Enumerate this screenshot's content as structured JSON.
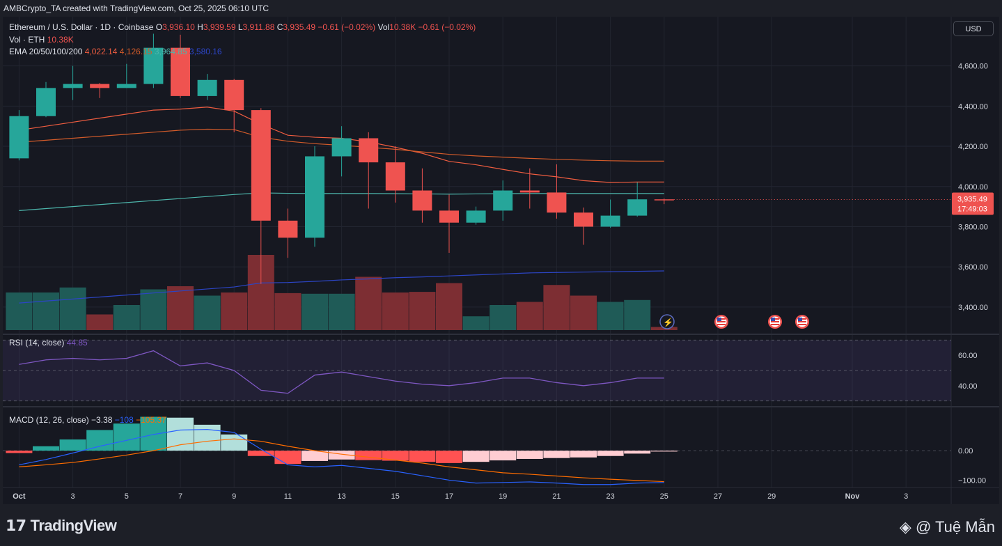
{
  "header": {
    "credit": "AMBCrypto_TA created with TradingView.com, Oct 25, 2025 06:10 UTC"
  },
  "legend": {
    "symbol": "Ethereum / U.S. Dollar · 1D · Coinbase",
    "o_label": "O",
    "o_value": "3,936.10",
    "h_label": "H",
    "h_value": "3,939.59",
    "l_label": "L",
    "l_value": "3,911.88",
    "c_label": "C",
    "c_value": "3,935.49",
    "change": "−0.61 (−0.02%)",
    "vol_label": "Vol",
    "vol_value": "10.38K",
    "vol_change": "−0.61 (−0.02%)",
    "vol_eth_label": "Vol · ETH",
    "vol_eth_value": "10.38K",
    "ema_label": "EMA 20/50/100/200",
    "ema_values": [
      "4,022.14",
      "4,126.15",
      "3,964.85",
      "3,580.16"
    ]
  },
  "currency_button": "USD",
  "price_tag": {
    "price": "3,935.49",
    "countdown": "17:49:03"
  },
  "rsi": {
    "label": "RSI (14, close)",
    "value": "44.85"
  },
  "macd": {
    "label": "MACD (12, 26, close)",
    "hist": "−3.38",
    "macd": "−108",
    "signal": "−105.37"
  },
  "footer": {
    "brand": "TradingView",
    "watermark": "@ Tuệ Mẫn"
  },
  "colors": {
    "up": "#26a69a",
    "down": "#ef5350",
    "bg": "#161821",
    "ema20": "#f05d40",
    "ema50": "#d25b2a",
    "ema100": "#4db6ac",
    "ema200": "#2c45c5",
    "rsi": "#7e57c2",
    "macd_line": "#2962ff",
    "signal_line": "#ff6d00"
  },
  "chart_data": {
    "type": "candlestick",
    "x": [
      "Oct 1",
      "Oct 2",
      "Oct 3",
      "Oct 4",
      "Oct 5",
      "Oct 6",
      "Oct 7",
      "Oct 8",
      "Oct 9",
      "Oct 10",
      "Oct 11",
      "Oct 12",
      "Oct 13",
      "Oct 14",
      "Oct 15",
      "Oct 16",
      "Oct 17",
      "Oct 18",
      "Oct 19",
      "Oct 20",
      "Oct 21",
      "Oct 22",
      "Oct 23",
      "Oct 24",
      "Oct 25"
    ],
    "ohlc": [
      [
        4140,
        4380,
        4130,
        4350
      ],
      [
        4350,
        4520,
        4345,
        4490
      ],
      [
        4490,
        4600,
        4430,
        4510
      ],
      [
        4510,
        4515,
        4440,
        4490
      ],
      [
        4490,
        4610,
        4490,
        4510
      ],
      [
        4510,
        4760,
        4490,
        4690
      ],
      [
        4690,
        4755,
        4440,
        4450
      ],
      [
        4450,
        4560,
        4430,
        4530
      ],
      [
        4530,
        4535,
        4270,
        4380
      ],
      [
        4380,
        4390,
        3515,
        3830
      ],
      [
        3830,
        3890,
        3645,
        3745
      ],
      [
        3745,
        4200,
        3700,
        4150
      ],
      [
        4150,
        4300,
        4050,
        4240
      ],
      [
        4240,
        4270,
        3890,
        4120
      ],
      [
        4120,
        4200,
        3920,
        3980
      ],
      [
        3980,
        4090,
        3820,
        3880
      ],
      [
        3880,
        3960,
        3670,
        3820
      ],
      [
        3820,
        3900,
        3810,
        3880
      ],
      [
        3880,
        4030,
        3830,
        3980
      ],
      [
        3980,
        4090,
        3890,
        3970
      ],
      [
        3970,
        4110,
        3840,
        3870
      ],
      [
        3870,
        3895,
        3710,
        3800
      ],
      [
        3800,
        3935,
        3795,
        3855
      ],
      [
        3855,
        4020,
        3850,
        3936
      ],
      [
        3936,
        3940,
        3912,
        3935
      ]
    ],
    "volume": [
      60,
      60,
      68,
      25,
      40,
      65,
      70,
      55,
      60,
      120,
      59,
      58,
      58,
      85,
      60,
      61,
      75,
      22,
      40,
      45,
      72,
      55,
      45,
      48,
      5
    ],
    "ema20": [
      4280,
      4300,
      4320,
      4340,
      4360,
      4380,
      4385,
      4395,
      4375,
      4310,
      4255,
      4245,
      4240,
      4222,
      4195,
      4165,
      4125,
      4108,
      4085,
      4063,
      4048,
      4029,
      4020,
      4022,
      4022
    ],
    "ema50": [
      4220,
      4230,
      4240,
      4250,
      4260,
      4270,
      4280,
      4285,
      4283,
      4245,
      4225,
      4213,
      4205,
      4195,
      4185,
      4172,
      4160,
      4152,
      4146,
      4140,
      4135,
      4131,
      4128,
      4126,
      4126
    ],
    "ema100": [
      3880,
      3890,
      3900,
      3910,
      3920,
      3930,
      3940,
      3950,
      3960,
      3968,
      3966,
      3965,
      3965,
      3965,
      3964,
      3963,
      3962,
      3963,
      3964,
      3965,
      3965,
      3965,
      3965,
      3965,
      3965
    ],
    "ema200": [
      3420,
      3430,
      3440,
      3450,
      3460,
      3470,
      3480,
      3490,
      3500,
      3520,
      3522,
      3528,
      3535,
      3540,
      3546,
      3550,
      3555,
      3560,
      3565,
      3570,
      3572,
      3574,
      3576,
      3578,
      3580
    ],
    "y_ticks": [
      "4,600.00",
      "4,400.00",
      "4,200.00",
      "4,000.00",
      "3,800.00",
      "3,600.00",
      "3,400.00"
    ],
    "y_tick_values": [
      4600,
      4400,
      4200,
      4000,
      3800,
      3600,
      3400
    ],
    "ylim": [
      3320,
      4810
    ],
    "rsi_values": [
      54,
      57,
      58,
      57,
      58,
      63,
      53,
      55,
      50,
      37,
      35,
      47,
      49,
      46,
      43,
      41,
      40,
      42,
      45,
      45,
      42,
      40,
      42,
      45,
      45
    ],
    "rsi_ticks": [
      "60.00",
      "40.00"
    ],
    "rsi_tick_values": [
      60,
      40
    ],
    "rsi_lim": [
      28,
      72
    ],
    "macd_hist": [
      -8,
      15,
      38,
      70,
      92,
      115,
      112,
      88,
      55,
      -18,
      -45,
      -35,
      -30,
      -32,
      -34,
      -38,
      -42,
      -38,
      -33,
      -28,
      -25,
      -23,
      -18,
      -10,
      -3
    ],
    "macd_line": [
      -48,
      -30,
      -8,
      15,
      35,
      55,
      70,
      72,
      62,
      5,
      -48,
      -55,
      -50,
      -60,
      -70,
      -85,
      -100,
      -110,
      -108,
      -106,
      -110,
      -115,
      -115,
      -110,
      -108
    ],
    "signal_line": [
      -55,
      -48,
      -40,
      -28,
      -15,
      0,
      20,
      32,
      40,
      32,
      15,
      0,
      -12,
      -22,
      -32,
      -42,
      -55,
      -65,
      -75,
      -80,
      -86,
      -92,
      -97,
      -101,
      -105
    ],
    "macd_ticks": [
      "0.00",
      "−100.00"
    ],
    "macd_tick_values": [
      0,
      -100
    ],
    "macd_lim": [
      -125,
      135
    ],
    "x_ticks": [
      "Oct",
      "3",
      "5",
      "7",
      "9",
      "11",
      "13",
      "15",
      "17",
      "19",
      "21",
      "23",
      "25",
      "27",
      "29",
      "Nov",
      "3"
    ],
    "x_tick_index": [
      1,
      3,
      5,
      7,
      9,
      11,
      13,
      15,
      17,
      19,
      21,
      23,
      25,
      27,
      29,
      32,
      34
    ]
  }
}
